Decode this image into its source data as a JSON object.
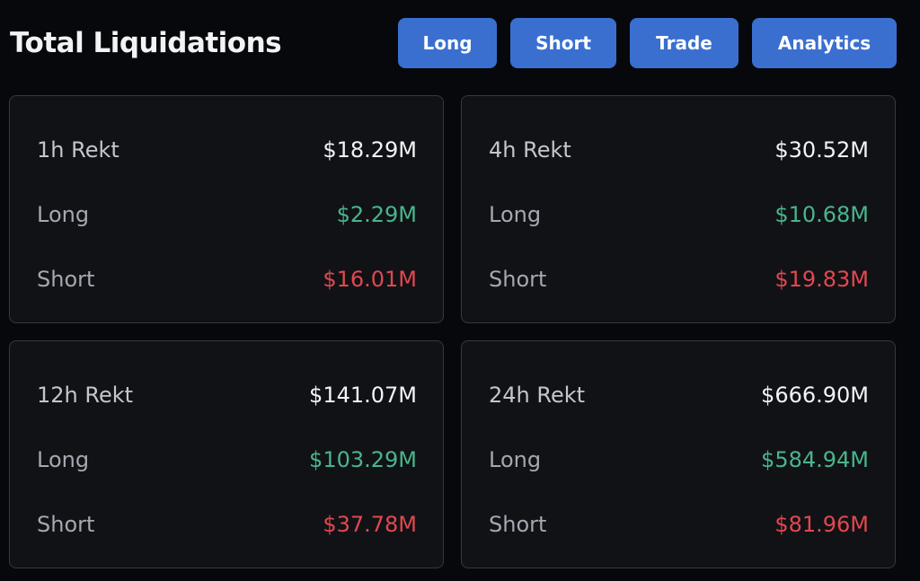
{
  "header": {
    "title": "Total Liquidations",
    "buttons": {
      "long": "Long",
      "short": "Short",
      "trade": "Trade",
      "analytics": "Analytics"
    }
  },
  "colors": {
    "background": "#07080c",
    "card": "#111216",
    "button": "#3a6fd0",
    "long_value": "#49b58c",
    "short_value": "#e0484f"
  },
  "cards": [
    {
      "period_label": "1h Rekt",
      "total": "$18.29M",
      "long_label": "Long",
      "long_value": "$2.29M",
      "short_label": "Short",
      "short_value": "$16.01M"
    },
    {
      "period_label": "4h Rekt",
      "total": "$30.52M",
      "long_label": "Long",
      "long_value": "$10.68M",
      "short_label": "Short",
      "short_value": "$19.83M"
    },
    {
      "period_label": "12h Rekt",
      "total": "$141.07M",
      "long_label": "Long",
      "long_value": "$103.29M",
      "short_label": "Short",
      "short_value": "$37.78M"
    },
    {
      "period_label": "24h Rekt",
      "total": "$666.90M",
      "long_label": "Long",
      "long_value": "$584.94M",
      "short_label": "Short",
      "short_value": "$81.96M"
    }
  ]
}
